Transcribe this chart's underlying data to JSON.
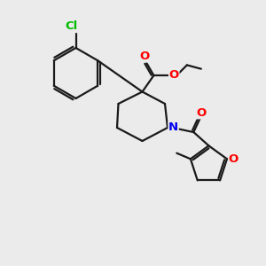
{
  "bg_color": "#ebebeb",
  "bond_color": "#1a1a1a",
  "bond_width": 1.6,
  "atom_colors": {
    "Cl": "#00bb00",
    "O": "#ff0000",
    "N": "#0000ee",
    "C": "#1a1a1a"
  },
  "font_size": 9.5,
  "fig_size": [
    3.0,
    3.0
  ],
  "dpi": 100
}
